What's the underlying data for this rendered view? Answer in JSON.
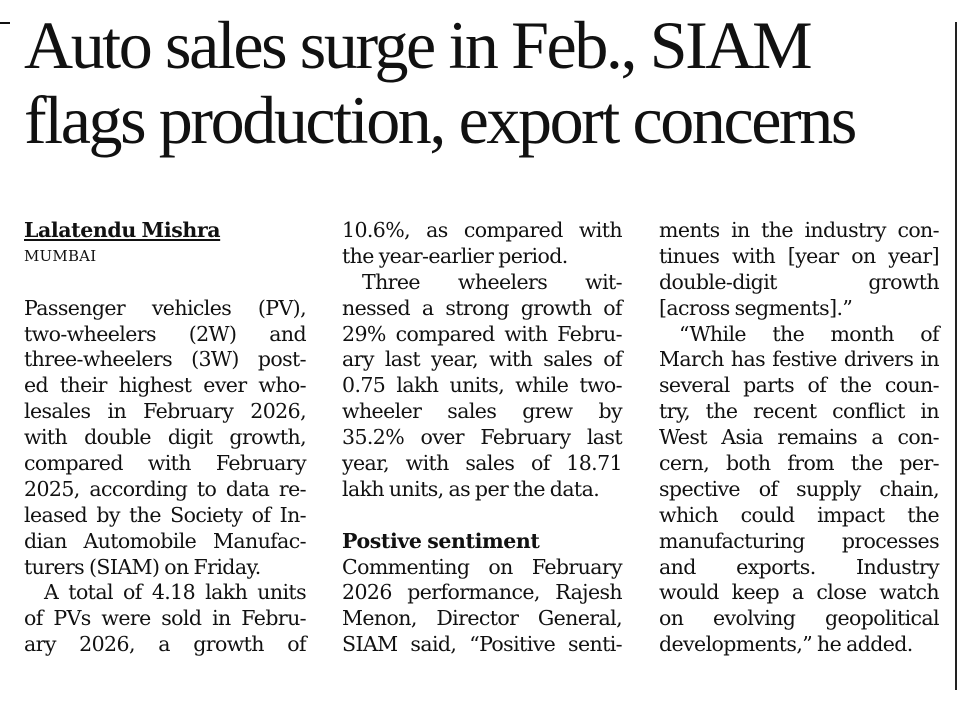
{
  "headline": {
    "line1": "Auto sales surge in Feb., SIAM",
    "line2": "flags production, export concerns"
  },
  "byline": {
    "author": "Lalatendu Mishra",
    "dateline": "MUMBAI"
  },
  "column1": {
    "lines": [
      "Passenger vehicles (PV),",
      "two-wheelers (2W) and",
      "three-wheelers (3W) post-",
      "ed their highest ever who-",
      "lesales in February 2026,",
      "with double digit growth,",
      "compared with February",
      "2025, according to data re-",
      "leased by the Society of In-",
      "dian Automobile Manufac-",
      "turers (SIAM) on Friday.",
      "A total of 4.18 lakh units",
      "of PVs were sold in Febru-",
      "ary 2026, a growth of"
    ]
  },
  "column2": {
    "lines_before": [
      "10.6%, as compared with",
      "the year-earlier period.",
      "Three wheelers wit-",
      "nessed a strong growth of",
      "29% compared with Febru-",
      "ary last year, with sales of",
      "0.75 lakh units, while two-",
      "wheeler sales grew by",
      "35.2% over February last",
      "year, with sales of 18.71",
      "lakh units, as per the data."
    ],
    "subhead": "Postive sentiment",
    "lines_after": [
      "Commenting on February",
      "2026 performance, Rajesh",
      "Menon, Director General,",
      "SIAM said, “Positive senti-"
    ]
  },
  "column3": {
    "lines": [
      "ments in the industry con-",
      "tinues with [year on year]",
      "double-digit growth",
      "[across segments].”",
      "“While the month of",
      "March has festive drivers in",
      "several parts of the coun-",
      "try, the recent conflict in",
      "West Asia remains a con-",
      "cern, both from the per-",
      "spective of supply chain,",
      "which could impact the",
      "manufacturing processes",
      "and exports. Industry",
      "would keep a close watch",
      "on evolving geopolitical",
      "developments,” he added."
    ]
  }
}
